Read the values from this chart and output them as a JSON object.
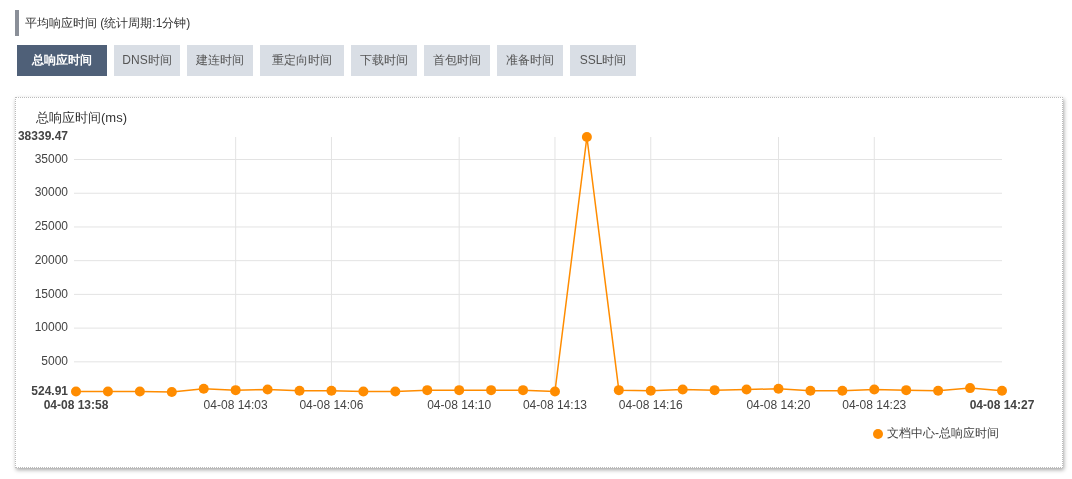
{
  "chart_data": {
    "type": "line",
    "title": "平均响应时间 (统计周期:1分钟)",
    "ylabel": "总响应时间(ms)",
    "annotations": [
      "总响应时间",
      "DNS时间",
      "建连时间",
      "重定向时间",
      "下载时间",
      "首包时间",
      "准备时间",
      "SSL时间"
    ],
    "categories": [
      "04-08 13:58",
      null,
      null,
      null,
      null,
      "04-08 14:03",
      null,
      null,
      "04-08 14:06",
      null,
      null,
      null,
      "04-08 14:10",
      null,
      null,
      "04-08 14:13",
      null,
      null,
      "04-08 14:16",
      null,
      null,
      null,
      "04-08 14:20",
      null,
      null,
      "04-08 14:23",
      null,
      null,
      null,
      "04-08 14:27"
    ],
    "series": [
      {
        "name": "文档中心-总响应时间",
        "color": "#ff8c00",
        "values": [
          600,
          600,
          600,
          524.91,
          1000,
          800,
          900,
          700,
          700,
          600,
          600,
          800,
          800,
          800,
          800,
          600,
          38339.47,
          800,
          700,
          900,
          800,
          900,
          1000,
          700,
          700,
          900,
          800,
          700,
          1100,
          700
        ]
      }
    ],
    "ylim": [
      524.91,
      38339.47
    ],
    "yticks": [
      {
        "value": 524.91,
        "label": "524.91"
      },
      5000,
      10000,
      15000,
      20000,
      25000,
      30000,
      35000,
      {
        "value": 38339.47,
        "label": "38339.47"
      }
    ],
    "grid": true,
    "legend": "bottom right",
    "marker": "circle",
    "line_style": "solid"
  }
}
